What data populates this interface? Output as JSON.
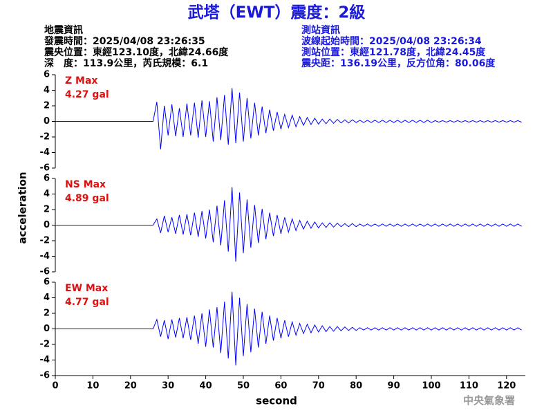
{
  "header": {
    "title": "武塔（EWT）震度：2級",
    "left": [
      "地震資訊",
      "發震時間：2025/04/08 23:26:35",
      "震央位置：東經123.10度，北緯24.66度",
      "深　度：113.9公里，芮氏規模：6.1"
    ],
    "right": [
      "測站資訊",
      "波線起始時間：2025/04/08 23:26:34",
      "測站位置：東經121.78度，北緯24.45度",
      "震央距：136.19公里，反方位角：80.06度"
    ],
    "credit": "中央氣象署"
  },
  "chart_data": [
    {
      "type": "line",
      "annotation": [
        "Z Max",
        "4.27 gal"
      ],
      "color": "#0000ff",
      "xlim": [
        0,
        125
      ],
      "ylim": [
        -6,
        6
      ],
      "yticks": [
        -6,
        -4,
        -2,
        0,
        2,
        4,
        6
      ],
      "x": [
        0,
        26,
        27,
        28,
        29,
        30,
        31,
        32,
        33,
        34,
        35,
        36,
        37,
        38,
        39,
        40,
        41,
        42,
        43,
        44,
        45,
        46,
        47,
        48,
        49,
        50,
        51,
        52,
        53,
        54,
        55,
        56,
        57,
        58,
        59,
        60,
        61,
        62,
        63,
        64,
        65,
        66,
        67,
        68,
        69,
        70,
        71,
        72,
        73,
        74,
        75,
        76,
        77,
        78,
        79,
        80,
        81,
        82,
        83,
        84,
        85,
        86,
        87,
        88,
        89,
        90,
        91,
        92,
        93,
        94,
        95,
        96,
        97,
        98,
        99,
        100,
        101,
        102,
        103,
        104,
        105,
        106,
        107,
        108,
        109,
        110,
        111,
        112,
        113,
        114,
        115,
        116,
        117,
        118,
        119,
        120,
        121,
        122,
        123,
        124
      ],
      "values": [
        0,
        0,
        2.5,
        -3.6,
        2.0,
        -1.8,
        2.2,
        -1.9,
        1.7,
        -2.0,
        2.3,
        -1.8,
        2.4,
        -2.1,
        2.7,
        -2.0,
        2.6,
        -2.6,
        3.1,
        -2.4,
        3.4,
        -3.0,
        4.27,
        -2.8,
        3.7,
        -2.6,
        3.0,
        -2.2,
        2.4,
        -1.8,
        1.9,
        -1.5,
        1.5,
        -1.2,
        1.2,
        -1.0,
        0.9,
        -0.8,
        0.8,
        -0.7,
        0.6,
        -0.5,
        0.5,
        -0.4,
        0.4,
        -0.35,
        0.3,
        -0.3,
        0.3,
        -0.25,
        0.25,
        -0.2,
        0.2,
        -0.2,
        0.2,
        -0.15,
        0.15,
        -0.15,
        0.15,
        -0.15,
        0.15,
        -0.15,
        0.15,
        -0.15,
        0.15,
        -0.15,
        0.15,
        -0.15,
        0.15,
        -0.15,
        0.15,
        -0.15,
        0.15,
        -0.15,
        0.15,
        -0.15,
        0.1,
        -0.1,
        0.1,
        -0.1,
        0.1,
        -0.1,
        0.1,
        -0.1,
        0.1,
        -0.1,
        0.1,
        -0.1,
        0.1,
        -0.1,
        0.1,
        -0.1,
        0.1,
        -0.1,
        0.1,
        -0.1,
        0.1,
        -0.1,
        0.1,
        -0.1
      ]
    },
    {
      "type": "line",
      "annotation": [
        "NS Max",
        "4.89 gal"
      ],
      "color": "#0000ff",
      "ylabel": "acceleration",
      "xlim": [
        0,
        125
      ],
      "ylim": [
        -6,
        6
      ],
      "yticks": [
        -6,
        -4,
        -2,
        0,
        2,
        4,
        6
      ],
      "x": [
        0,
        26,
        27,
        28,
        29,
        30,
        31,
        32,
        33,
        34,
        35,
        36,
        37,
        38,
        39,
        40,
        41,
        42,
        43,
        44,
        45,
        46,
        47,
        48,
        49,
        50,
        51,
        52,
        53,
        54,
        55,
        56,
        57,
        58,
        59,
        60,
        61,
        62,
        63,
        64,
        65,
        66,
        67,
        68,
        69,
        70,
        71,
        72,
        73,
        74,
        75,
        76,
        77,
        78,
        79,
        80,
        81,
        82,
        83,
        84,
        85,
        86,
        87,
        88,
        89,
        90,
        91,
        92,
        93,
        94,
        95,
        96,
        97,
        98,
        99,
        100,
        101,
        102,
        103,
        104,
        105,
        106,
        107,
        108,
        109,
        110,
        111,
        112,
        113,
        114,
        115,
        116,
        117,
        118,
        119,
        120,
        121,
        122,
        123,
        124
      ],
      "values": [
        0,
        0,
        0.8,
        -1.0,
        1.2,
        -0.9,
        1.0,
        -1.1,
        1.3,
        -1.2,
        1.4,
        -1.3,
        1.6,
        -1.5,
        1.8,
        -1.7,
        2.0,
        -2.2,
        2.5,
        -2.6,
        3.2,
        -3.4,
        4.89,
        -4.7,
        4.2,
        -3.6,
        3.3,
        -2.9,
        2.6,
        -2.3,
        2.1,
        -1.8,
        1.6,
        -1.4,
        1.3,
        -1.1,
        1.0,
        -0.9,
        0.8,
        -0.7,
        0.6,
        -0.5,
        0.5,
        -0.4,
        0.4,
        -0.35,
        0.3,
        -0.3,
        0.3,
        -0.25,
        0.25,
        -0.2,
        0.2,
        -0.2,
        0.2,
        -0.2,
        0.15,
        -0.15,
        0.15,
        -0.15,
        0.15,
        -0.15,
        0.15,
        -0.15,
        0.15,
        -0.15,
        0.15,
        -0.15,
        0.15,
        -0.15,
        0.15,
        -0.15,
        0.15,
        -0.15,
        0.15,
        -0.15,
        0.15,
        -0.15,
        0.15,
        -0.15,
        0.15,
        -0.15,
        0.15,
        -0.15,
        0.15,
        -0.15,
        0.15,
        -0.15,
        0.15,
        -0.15,
        0.15,
        -0.15,
        0.15,
        -0.15,
        0.15,
        -0.15,
        0.15,
        -0.15,
        0.15,
        -0.15
      ]
    },
    {
      "type": "line",
      "annotation": [
        "EW Max",
        "4.77 gal"
      ],
      "color": "#0000ff",
      "xlabel": "second",
      "xlim": [
        0,
        125
      ],
      "xticks": [
        0,
        10,
        20,
        30,
        40,
        50,
        60,
        70,
        80,
        90,
        100,
        110,
        120
      ],
      "ylim": [
        -6,
        6
      ],
      "yticks": [
        -6,
        -4,
        -2,
        0,
        2,
        4,
        6
      ],
      "x": [
        0,
        26,
        27,
        28,
        29,
        30,
        31,
        32,
        33,
        34,
        35,
        36,
        37,
        38,
        39,
        40,
        41,
        42,
        43,
        44,
        45,
        46,
        47,
        48,
        49,
        50,
        51,
        52,
        53,
        54,
        55,
        56,
        57,
        58,
        59,
        60,
        61,
        62,
        63,
        64,
        65,
        66,
        67,
        68,
        69,
        70,
        71,
        72,
        73,
        74,
        75,
        76,
        77,
        78,
        79,
        80,
        81,
        82,
        83,
        84,
        85,
        86,
        87,
        88,
        89,
        90,
        91,
        92,
        93,
        94,
        95,
        96,
        97,
        98,
        99,
        100,
        101,
        102,
        103,
        104,
        105,
        106,
        107,
        108,
        109,
        110,
        111,
        112,
        113,
        114,
        115,
        116,
        117,
        118,
        119,
        120,
        121,
        122,
        123,
        124
      ],
      "values": [
        0,
        0,
        1.2,
        -1.0,
        1.1,
        -1.3,
        1.2,
        -1.1,
        1.4,
        -1.2,
        1.5,
        -1.4,
        1.7,
        -1.9,
        2.0,
        -2.3,
        2.5,
        -2.4,
        2.8,
        -3.1,
        3.5,
        -3.8,
        4.77,
        -4.7,
        4.0,
        -3.5,
        3.2,
        -3.0,
        2.6,
        -2.4,
        2.2,
        -1.9,
        1.7,
        -1.5,
        1.4,
        -1.2,
        1.1,
        -1.0,
        0.9,
        -0.8,
        0.7,
        -0.6,
        0.6,
        -0.5,
        0.5,
        -0.4,
        0.4,
        -0.35,
        0.3,
        -0.3,
        0.3,
        -0.25,
        0.25,
        -0.2,
        0.2,
        -0.2,
        0.15,
        -0.15,
        0.15,
        -0.15,
        0.15,
        -0.15,
        0.15,
        -0.15,
        0.15,
        -0.15,
        0.15,
        -0.15,
        0.15,
        -0.15,
        0.15,
        -0.15,
        0.15,
        -0.15,
        0.15,
        -0.15,
        0.15,
        -0.15,
        0.15,
        -0.15,
        0.15,
        -0.15,
        0.15,
        -0.15,
        0.15,
        -0.15,
        0.15,
        -0.15,
        0.15,
        -0.15,
        0.15,
        -0.15,
        0.15,
        -0.15,
        0.15,
        -0.15,
        0.15,
        -0.15,
        0.15,
        -0.15
      ]
    }
  ]
}
